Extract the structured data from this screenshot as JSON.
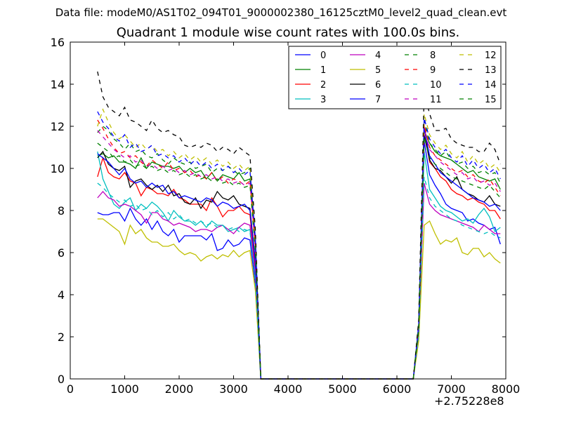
{
  "suptitle": "Data file: modeM0/AS1T02_094T01_9000002380_16125cztM0_level2_quad_clean.evt",
  "chart_data": {
    "type": "line",
    "title": "Quadrant 1 module wise count rates with 100.0s bins.",
    "xlabel": "",
    "ylabel": "",
    "x_offset_label": "+2.75228e8",
    "xlim": [
      0,
      8000
    ],
    "ylim": [
      0,
      16
    ],
    "xticks": [
      "0",
      "1000",
      "2000",
      "3000",
      "4000",
      "5000",
      "6000",
      "7000",
      "8000"
    ],
    "yticks": [
      "0",
      "2",
      "4",
      "6",
      "8",
      "10",
      "12",
      "14",
      "16"
    ],
    "grid": false,
    "legend_position": "top-right",
    "x": [
      500,
      600,
      700,
      800,
      900,
      1000,
      1100,
      1200,
      1300,
      1400,
      1500,
      1600,
      1700,
      1800,
      1900,
      2000,
      2100,
      2200,
      2300,
      2400,
      2500,
      2600,
      2700,
      2800,
      2900,
      3000,
      3100,
      3200,
      3300,
      3400,
      3500,
      6300,
      6400,
      6500,
      6600,
      6700,
      6800,
      6900,
      7000,
      7100,
      7200,
      7300,
      7400,
      7500,
      7600,
      7700,
      7800,
      7900
    ],
    "series": [
      {
        "name": "0",
        "color": "#0000ff",
        "dash": "solid",
        "values": [
          7.9,
          7.8,
          7.8,
          7.9,
          7.9,
          7.5,
          8.1,
          7.6,
          7.3,
          7.6,
          7.1,
          7.5,
          7.0,
          6.8,
          7.1,
          6.5,
          6.8,
          6.8,
          6.8,
          6.8,
          6.6,
          6.9,
          6.1,
          6.2,
          6.6,
          6.3,
          6.4,
          6.7,
          6.6,
          4.5,
          0,
          0,
          2.1,
          11.3,
          9.7,
          9.2,
          8.8,
          8.3,
          8.1,
          8.0,
          7.9,
          7.5,
          7.6,
          7.4,
          7.3,
          7.1,
          7.2,
          6.4
        ]
      },
      {
        "name": "1",
        "color": "#008000",
        "dash": "solid",
        "values": [
          10.6,
          10.7,
          10.5,
          10.6,
          10.3,
          10.3,
          10.2,
          10.0,
          10.5,
          10.0,
          10.3,
          10.2,
          10.1,
          10.1,
          10.0,
          10.1,
          9.8,
          10.0,
          9.8,
          9.9,
          9.5,
          9.8,
          9.4,
          9.7,
          9.6,
          9.5,
          9.8,
          9.4,
          9.5,
          6.5,
          0,
          0,
          2.5,
          11.8,
          11.2,
          10.8,
          10.6,
          10.5,
          10.4,
          10.2,
          10.0,
          9.8,
          9.9,
          9.6,
          9.5,
          9.4,
          9.5,
          9.0
        ]
      },
      {
        "name": "2",
        "color": "#ff0000",
        "dash": "solid",
        "values": [
          9.6,
          10.5,
          9.8,
          9.6,
          9.5,
          9.8,
          9.4,
          9.3,
          8.7,
          9.1,
          9.0,
          8.8,
          8.8,
          8.7,
          9.0,
          8.6,
          8.5,
          8.3,
          8.3,
          8.3,
          8.0,
          8.6,
          8.2,
          7.7,
          8.0,
          8.0,
          8.2,
          7.9,
          7.8,
          5.2,
          0,
          0,
          2.3,
          12.0,
          10.3,
          10.0,
          9.6,
          9.4,
          9.0,
          8.8,
          8.7,
          8.5,
          8.6,
          8.4,
          8.3,
          8.0,
          8.0,
          7.6
        ]
      },
      {
        "name": "3",
        "color": "#00bfbf",
        "dash": "solid",
        "values": [
          10.8,
          9.5,
          8.9,
          8.3,
          8.1,
          8.4,
          8.6,
          8.0,
          8.3,
          8.1,
          8.4,
          8.2,
          7.9,
          7.5,
          8.0,
          7.7,
          7.5,
          7.5,
          7.3,
          7.5,
          7.2,
          7.5,
          7.3,
          7.3,
          7.0,
          7.1,
          7.2,
          7.0,
          7.1,
          4.8,
          0,
          0,
          2.0,
          10.8,
          9.0,
          8.6,
          8.2,
          8.0,
          7.9,
          7.7,
          7.5,
          7.6,
          7.4,
          7.8,
          8.1,
          7.7,
          7.0,
          7.2
        ]
      },
      {
        "name": "4",
        "color": "#bf00bf",
        "dash": "solid",
        "values": [
          8.6,
          8.9,
          8.6,
          8.5,
          8.2,
          8.3,
          8.2,
          8.0,
          7.8,
          7.4,
          7.9,
          7.9,
          7.6,
          7.5,
          7.3,
          7.4,
          7.3,
          7.2,
          7.0,
          7.1,
          7.1,
          7.0,
          7.2,
          7.3,
          7.1,
          6.9,
          7.2,
          7.4,
          7.3,
          5.0,
          0,
          0,
          2.2,
          9.3,
          8.3,
          8.0,
          7.8,
          7.7,
          7.6,
          7.5,
          7.4,
          7.3,
          7.2,
          7.0,
          7.3,
          7.1,
          6.9,
          6.9
        ]
      },
      {
        "name": "5",
        "color": "#bfbf00",
        "dash": "solid",
        "values": [
          7.6,
          7.6,
          7.4,
          7.2,
          7.0,
          6.4,
          7.3,
          6.9,
          7.1,
          6.7,
          6.5,
          6.5,
          6.3,
          6.3,
          6.4,
          6.1,
          5.9,
          6.0,
          5.9,
          5.6,
          5.8,
          5.9,
          5.7,
          5.9,
          5.8,
          6.1,
          5.8,
          6.0,
          6.1,
          4.2,
          0,
          0,
          1.8,
          7.3,
          7.5,
          6.9,
          6.4,
          6.6,
          6.5,
          6.7,
          6.0,
          5.9,
          6.2,
          6.2,
          5.8,
          6.0,
          5.7,
          5.5
        ]
      },
      {
        "name": "6",
        "color": "#000000",
        "dash": "solid",
        "values": [
          10.5,
          10.8,
          10.2,
          10.0,
          9.9,
          10.1,
          9.1,
          9.4,
          9.5,
          9.2,
          9.0,
          9.2,
          8.9,
          9.2,
          8.7,
          8.8,
          8.4,
          8.3,
          8.6,
          8.1,
          8.5,
          8.4,
          8.9,
          8.6,
          8.5,
          8.7,
          8.3,
          8.2,
          8.1,
          5.6,
          0,
          0,
          2.4,
          11.6,
          10.4,
          10.0,
          9.9,
          9.6,
          9.3,
          9.6,
          9.0,
          8.8,
          8.7,
          8.5,
          8.4,
          8.7,
          8.3,
          8.2
        ]
      },
      {
        "name": "7",
        "color": "#0000ff",
        "dash": "solid",
        "values": [
          10.7,
          10.5,
          10.3,
          10.0,
          9.7,
          10.0,
          9.5,
          9.3,
          9.4,
          9.1,
          9.3,
          9.1,
          9.2,
          8.8,
          8.9,
          8.6,
          8.7,
          8.6,
          8.5,
          8.4,
          8.6,
          8.5,
          8.2,
          8.4,
          8.3,
          8.1,
          8.2,
          8.3,
          8.0,
          5.5,
          0,
          0,
          2.3,
          11.9,
          10.6,
          10.2,
          9.8,
          9.6,
          9.4,
          9.2,
          9.0,
          8.8,
          8.6,
          8.5,
          8.4,
          8.2,
          8.3,
          8.0
        ]
      },
      {
        "name": "8",
        "color": "#008000",
        "dash": "dashed",
        "values": [
          11.7,
          12.0,
          11.8,
          11.4,
          11.2,
          10.9,
          11.2,
          10.8,
          10.9,
          10.6,
          10.5,
          10.7,
          10.4,
          10.2,
          10.5,
          10.3,
          10.2,
          10.3,
          10.0,
          10.1,
          10.2,
          9.8,
          10.0,
          9.9,
          10.1,
          9.9,
          9.7,
          9.8,
          10.0,
          6.6,
          0,
          0,
          2.6,
          12.3,
          11.2,
          10.9,
          10.6,
          10.8,
          10.4,
          10.2,
          10.3,
          10.0,
          10.1,
          9.8,
          9.9,
          9.7,
          9.8,
          9.3
        ]
      },
      {
        "name": "9",
        "color": "#ff0000",
        "dash": "dashed",
        "values": [
          12.3,
          11.9,
          11.4,
          11.0,
          10.7,
          10.8,
          10.5,
          10.6,
          10.3,
          10.1,
          10.4,
          10.2,
          10.0,
          10.3,
          9.9,
          10.0,
          9.8,
          9.9,
          9.6,
          9.7,
          9.5,
          9.8,
          9.4,
          9.6,
          9.3,
          9.5,
          9.4,
          9.2,
          9.4,
          6.3,
          0,
          0,
          2.5,
          12.1,
          11.0,
          10.6,
          10.4,
          10.2,
          10.0,
          9.8,
          9.9,
          9.6,
          9.7,
          9.4,
          9.3,
          9.5,
          9.1,
          8.7
        ]
      },
      {
        "name": "10",
        "color": "#00bfbf",
        "dash": "dashed",
        "values": [
          9.3,
          9.1,
          8.8,
          8.6,
          8.4,
          8.5,
          8.2,
          8.3,
          8.0,
          8.1,
          7.8,
          8.0,
          7.7,
          7.9,
          7.6,
          7.8,
          7.5,
          7.6,
          7.4,
          7.5,
          7.3,
          7.4,
          7.2,
          7.3,
          7.1,
          7.2,
          7.0,
          7.1,
          7.0,
          4.7,
          0,
          0,
          2.1,
          9.6,
          8.6,
          8.2,
          8.0,
          7.8,
          7.6,
          7.5,
          7.3,
          7.2,
          7.1,
          7.0,
          6.9,
          7.0,
          6.8,
          6.7
        ]
      },
      {
        "name": "11",
        "color": "#bf00bf",
        "dash": "dashed",
        "values": [
          11.8,
          11.5,
          11.2,
          10.9,
          10.7,
          10.5,
          10.6,
          10.3,
          10.4,
          10.1,
          10.2,
          10.0,
          10.1,
          9.9,
          10.0,
          9.8,
          9.9,
          9.7,
          9.8,
          9.6,
          9.7,
          9.5,
          9.6,
          9.4,
          9.5,
          9.3,
          9.4,
          9.2,
          9.3,
          6.2,
          0,
          0,
          2.4,
          11.9,
          10.9,
          10.6,
          10.3,
          10.1,
          9.9,
          9.7,
          9.8,
          9.5,
          9.6,
          9.3,
          9.4,
          9.2,
          9.3,
          8.9
        ]
      },
      {
        "name": "12",
        "color": "#bfbf00",
        "dash": "dashed",
        "values": [
          12.0,
          12.8,
          12.2,
          11.7,
          11.4,
          11.6,
          11.3,
          11.0,
          11.2,
          10.9,
          11.1,
          10.8,
          10.9,
          10.6,
          10.8,
          10.5,
          10.7,
          10.4,
          10.6,
          10.3,
          10.5,
          10.2,
          10.4,
          10.1,
          10.3,
          10.0,
          10.2,
          9.9,
          10.1,
          6.8,
          0,
          0,
          2.7,
          12.6,
          11.6,
          11.2,
          10.9,
          11.1,
          10.7,
          10.5,
          10.8,
          10.3,
          10.6,
          10.2,
          10.4,
          10.0,
          10.2,
          9.8
        ]
      },
      {
        "name": "13",
        "color": "#000000",
        "dash": "dashed",
        "values": [
          14.6,
          13.4,
          12.9,
          12.7,
          12.5,
          12.9,
          12.3,
          12.2,
          12.0,
          11.8,
          12.3,
          11.9,
          11.7,
          11.8,
          11.6,
          11.5,
          11.1,
          11.0,
          11.1,
          11.0,
          11.2,
          11.1,
          10.8,
          11.0,
          10.9,
          10.7,
          11.0,
          10.8,
          10.6,
          7.1,
          0,
          0,
          2.8,
          13.6,
          12.6,
          11.8,
          11.8,
          11.9,
          11.4,
          11.2,
          11.1,
          11.0,
          11.0,
          10.8,
          10.8,
          11.2,
          10.9,
          10.2
        ]
      },
      {
        "name": "14",
        "color": "#0000ff",
        "dash": "dashed",
        "values": [
          12.7,
          12.2,
          11.9,
          11.5,
          11.3,
          11.6,
          11.0,
          11.2,
          10.8,
          10.9,
          11.1,
          10.6,
          10.7,
          10.5,
          10.6,
          10.3,
          10.5,
          10.2,
          10.4,
          10.1,
          10.3,
          10.0,
          10.2,
          9.9,
          10.1,
          9.8,
          10.0,
          9.7,
          9.9,
          6.7,
          0,
          0,
          2.6,
          12.4,
          11.4,
          11.0,
          10.7,
          10.9,
          10.5,
          10.3,
          10.6,
          10.1,
          10.4,
          10.0,
          10.2,
          9.8,
          10.0,
          9.5
        ]
      },
      {
        "name": "15",
        "color": "#008000",
        "dash": "dashed",
        "values": [
          11.2,
          11.0,
          10.8,
          10.5,
          10.6,
          10.3,
          10.4,
          10.1,
          10.2,
          10.0,
          10.1,
          9.9,
          10.0,
          9.8,
          9.9,
          9.7,
          9.8,
          9.6,
          9.7,
          9.5,
          9.6,
          9.4,
          9.5,
          9.3,
          9.4,
          9.2,
          9.3,
          9.1,
          9.2,
          6.1,
          0,
          0,
          2.4,
          11.5,
          10.5,
          10.2,
          10.0,
          9.8,
          9.6,
          9.5,
          9.4,
          9.3,
          9.2,
          9.1,
          9.0,
          9.2,
          8.9,
          8.6
        ]
      }
    ]
  }
}
